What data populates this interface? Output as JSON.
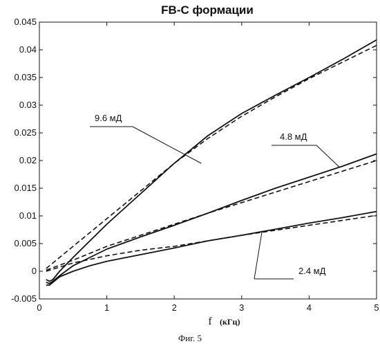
{
  "chart_data": {
    "type": "line",
    "title": "FB-C формации",
    "xlabel": "f",
    "xunit": "(кГц)",
    "ylabel": "",
    "xlim": [
      0,
      5
    ],
    "ylim": [
      -0.005,
      0.045
    ],
    "xticks": [
      "0",
      "1",
      "2",
      "3",
      "4",
      "5"
    ],
    "yticks": [
      "-0.005",
      "0",
      "0.005",
      "0.01",
      "0.015",
      "0.02",
      "0.025",
      "0.03",
      "0.035",
      "0.04",
      "0.045"
    ],
    "grid": false,
    "series": [
      {
        "name": "9.6 мД",
        "style": "solid",
        "x": [
          0.1,
          0.15,
          0.2,
          0.3,
          0.5,
          0.75,
          1,
          1.5,
          2,
          2.5,
          3,
          3.5,
          4,
          4.5,
          5
        ],
        "y": [
          -0.0015,
          -0.0018,
          -0.0015,
          0,
          0.0025,
          0.0055,
          0.0085,
          0.014,
          0.0195,
          0.0245,
          0.0285,
          0.0318,
          0.035,
          0.0383,
          0.0418
        ]
      },
      {
        "name": "9.6 мД",
        "style": "dashed",
        "x": [
          0.1,
          0.5,
          1,
          1.5,
          2,
          2.5,
          3,
          3.5,
          4,
          4.5,
          5
        ],
        "y": [
          0.0005,
          0.0045,
          0.0095,
          0.0145,
          0.0195,
          0.024,
          0.028,
          0.0315,
          0.0348,
          0.0378,
          0.0408
        ]
      },
      {
        "name": "4.8 мД",
        "style": "solid",
        "x": [
          0.1,
          0.15,
          0.2,
          0.3,
          0.5,
          0.75,
          1,
          1.5,
          2,
          2.5,
          3,
          3.5,
          4,
          4.5,
          5
        ],
        "y": [
          -0.002,
          -0.0022,
          -0.0018,
          -0.0008,
          0.001,
          0.0025,
          0.004,
          0.0062,
          0.0083,
          0.0105,
          0.0128,
          0.015,
          0.017,
          0.019,
          0.0212
        ]
      },
      {
        "name": "4.8 мД",
        "style": "dashed",
        "x": [
          0.1,
          0.5,
          1,
          1.5,
          2,
          2.5,
          3,
          3.5,
          4,
          4.5,
          5
        ],
        "y": [
          0.0002,
          0.002,
          0.0045,
          0.0065,
          0.0085,
          0.0105,
          0.0124,
          0.0143,
          0.0162,
          0.0181,
          0.02
        ]
      },
      {
        "name": "2.4 мД",
        "style": "solid",
        "x": [
          0.1,
          0.15,
          0.2,
          0.3,
          0.5,
          0.75,
          1,
          1.5,
          2,
          2.5,
          3,
          3.5,
          4,
          4.5,
          5
        ],
        "y": [
          -0.0025,
          -0.0025,
          -0.002,
          -0.001,
          0,
          0.001,
          0.0018,
          0.003,
          0.0042,
          0.0055,
          0.0065,
          0.0076,
          0.0087,
          0.0097,
          0.0108
        ]
      },
      {
        "name": "2.4 мД",
        "style": "dashed",
        "x": [
          0.1,
          0.5,
          1,
          1.5,
          2,
          2.5,
          3,
          3.5,
          4,
          4.5,
          5
        ],
        "y": [
          0,
          0.0015,
          0.0028,
          0.0038,
          0.0045,
          0.0055,
          0.0065,
          0.0074,
          0.0083,
          0.0092,
          0.0101
        ]
      }
    ],
    "annotations": [
      {
        "label": "9.6 мД",
        "target_x": 2.4,
        "target_y": 0.0195
      },
      {
        "label": "4.8 мД",
        "target_x": 4.45,
        "target_y": 0.0188
      },
      {
        "label": "2.4 мД",
        "target_x": 3.3,
        "target_y": 0.0071
      }
    ],
    "caption": "Фиг. 5"
  }
}
